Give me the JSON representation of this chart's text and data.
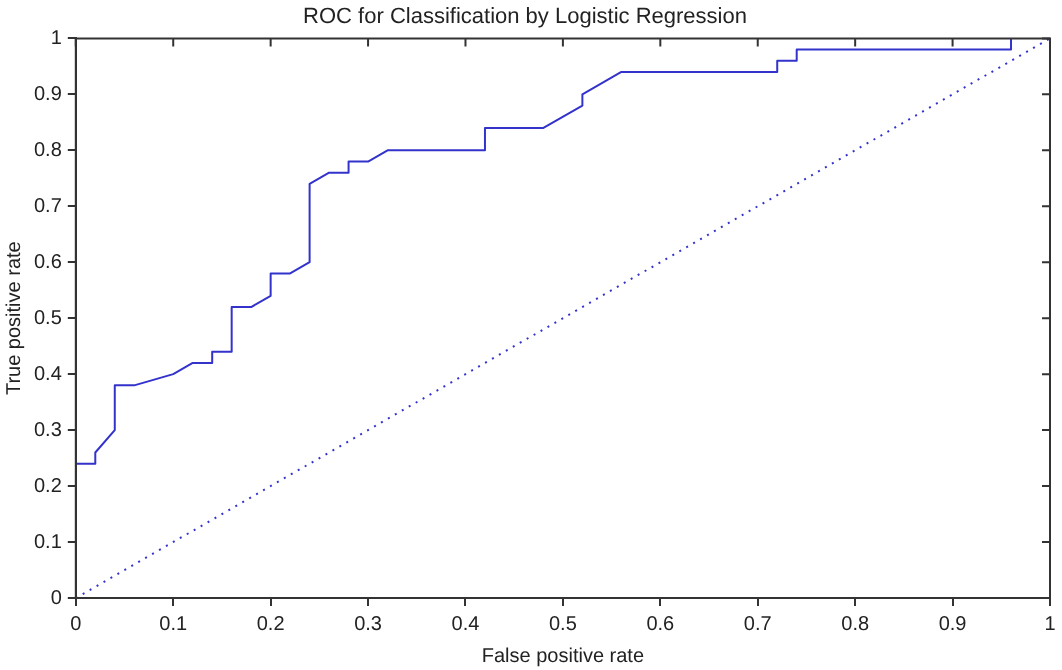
{
  "chart_data": {
    "type": "line",
    "title": "ROC for Classification by Logistic Regression",
    "xlabel": "False positive rate",
    "ylabel": "True positive rate",
    "xlim": [
      0,
      1
    ],
    "ylim": [
      0,
      1
    ],
    "xticks": [
      0,
      0.1,
      0.2,
      0.3,
      0.4,
      0.5,
      0.6,
      0.7,
      0.8,
      0.9,
      1
    ],
    "yticks": [
      0,
      0.1,
      0.2,
      0.3,
      0.4,
      0.5,
      0.6,
      0.7,
      0.8,
      0.9,
      1
    ],
    "grid": false,
    "legend": false,
    "marker": "none",
    "series": [
      {
        "color": "#3333cc",
        "line_style": "solid",
        "x": [
          0,
          0.02,
          0.02,
          0.04,
          0.04,
          0.06,
          0.1,
          0.12,
          0.14,
          0.14,
          0.16,
          0.16,
          0.18,
          0.2,
          0.2,
          0.22,
          0.24,
          0.24,
          0.26,
          0.28,
          0.28,
          0.3,
          0.32,
          0.42,
          0.42,
          0.48,
          0.52,
          0.52,
          0.56,
          0.72,
          0.72,
          0.74,
          0.74,
          0.96,
          0.96
        ],
        "values": [
          0.24,
          0.24,
          0.26,
          0.3,
          0.38,
          0.38,
          0.4,
          0.42,
          0.42,
          0.44,
          0.44,
          0.52,
          0.52,
          0.54,
          0.58,
          0.58,
          0.6,
          0.74,
          0.76,
          0.76,
          0.78,
          0.78,
          0.8,
          0.8,
          0.84,
          0.84,
          0.88,
          0.9,
          0.94,
          0.94,
          0.96,
          0.96,
          0.98,
          0.98,
          1.0
        ]
      },
      {
        "color": "#3333cc",
        "line_style": "dotted",
        "x": [
          0,
          1
        ],
        "values": [
          0,
          1
        ]
      }
    ]
  }
}
